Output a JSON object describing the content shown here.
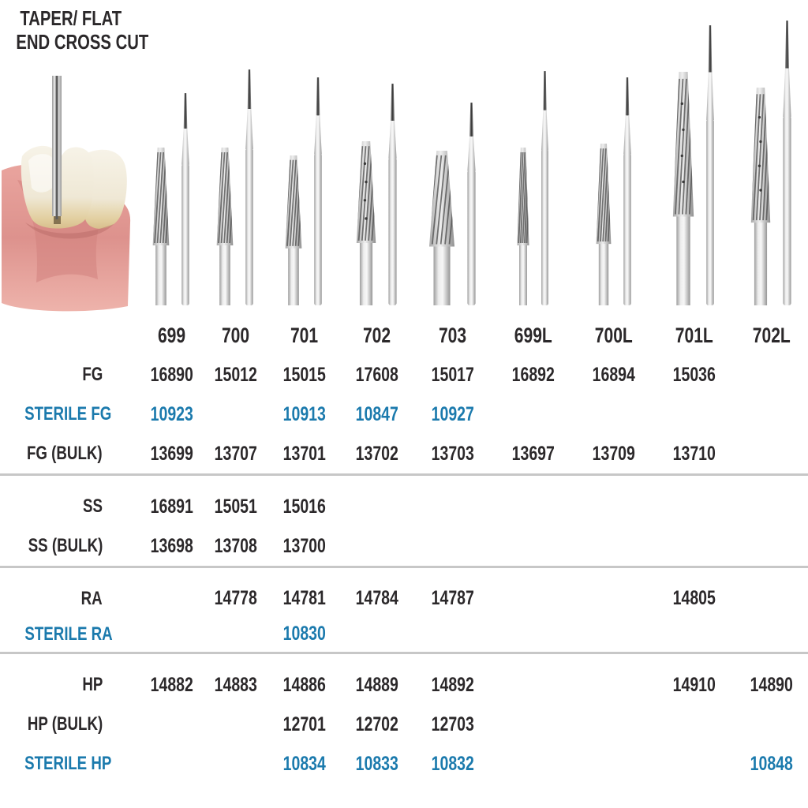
{
  "header": {
    "title_line1": "TAPER/ FLAT",
    "title_line2": "END CROSS CUT"
  },
  "figures": {
    "tooth_illustration": "illustration of bur cutting between teeth",
    "bur_photos": "photos of taper/flat end cross cut burs, close-up and full view per size"
  },
  "table": {
    "columns": [
      "699",
      "700",
      "701",
      "702",
      "703",
      "699L",
      "700L",
      "701L",
      "702L"
    ],
    "sections": [
      {
        "rows": [
          {
            "label": "FG",
            "style": "black",
            "values": [
              "16890",
              "15012",
              "15015",
              "17608",
              "15017",
              "16892",
              "16894",
              "15036",
              ""
            ]
          },
          {
            "label": "STERILE FG",
            "style": "blue",
            "values": [
              "10923",
              "",
              "10913",
              "10847",
              "10927",
              "",
              "",
              "",
              ""
            ]
          },
          {
            "label": "FG (BULK)",
            "style": "black",
            "values": [
              "13699",
              "13707",
              "13701",
              "13702",
              "13703",
              "13697",
              "13709",
              "13710",
              ""
            ]
          }
        ]
      },
      {
        "rows": [
          {
            "label": "SS",
            "style": "black",
            "values": [
              "16891",
              "15051",
              "15016",
              "",
              "",
              "",
              "",
              "",
              ""
            ]
          },
          {
            "label": "SS (BULK)",
            "style": "black",
            "values": [
              "13698",
              "13708",
              "13700",
              "",
              "",
              "",
              "",
              "",
              ""
            ]
          }
        ]
      },
      {
        "rows": [
          {
            "label": "RA",
            "style": "black",
            "values": [
              "",
              "14778",
              "14781",
              "14784",
              "14787",
              "",
              "",
              "14805",
              ""
            ]
          },
          {
            "label": "STERILE RA",
            "style": "blue",
            "values": [
              "",
              "",
              "10830",
              "",
              "",
              "",
              "",
              "",
              ""
            ]
          }
        ]
      },
      {
        "rows": [
          {
            "label": "HP",
            "style": "black",
            "values": [
              "14882",
              "14883",
              "14886",
              "14889",
              "14892",
              "",
              "",
              "14910",
              "14890"
            ]
          },
          {
            "label": "HP (BULK)",
            "style": "black",
            "values": [
              "",
              "",
              "12701",
              "12702",
              "12703",
              "",
              "",
              "",
              ""
            ]
          },
          {
            "label": "STERILE HP",
            "style": "blue",
            "values": [
              "",
              "",
              "10834",
              "10833",
              "10832",
              "",
              "",
              "",
              "10848"
            ]
          }
        ]
      }
    ]
  },
  "colors": {
    "accent_blue": "#1b7aad",
    "text_black": "#2b282a",
    "separator_gray": "#c7c7c7"
  }
}
